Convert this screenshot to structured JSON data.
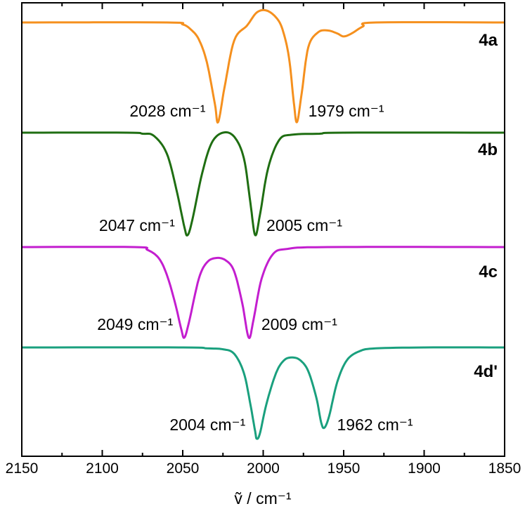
{
  "chart_data": {
    "type": "line",
    "xlabel": "ṽ / cm⁻¹",
    "xlim": [
      2150,
      1850
    ],
    "x_reversed": true,
    "x_ticks": [
      {
        "value": 2150,
        "label": "2150"
      },
      {
        "value": 2100,
        "label": "2100"
      },
      {
        "value": 2050,
        "label": "2050"
      },
      {
        "value": 2000,
        "label": "2000"
      },
      {
        "value": 1950,
        "label": "1950"
      },
      {
        "value": 1900,
        "label": "1900"
      },
      {
        "value": 1850,
        "label": "1850"
      }
    ],
    "minor_tick_step": 25,
    "y_axis_shown": false,
    "grid": false,
    "legend": "none",
    "stacked_offset": true,
    "series": [
      {
        "name": "4a",
        "color": "#f5901e",
        "relative_transmittance": [
          [
            2150,
            1.0
          ],
          [
            2060,
            1.0
          ],
          [
            2050,
            0.98
          ],
          [
            2045,
            0.93
          ],
          [
            2040,
            0.83
          ],
          [
            2035,
            0.6
          ],
          [
            2030,
            0.18
          ],
          [
            2028,
            0.0
          ],
          [
            2024,
            0.35
          ],
          [
            2018,
            0.82
          ],
          [
            2010,
            0.97
          ],
          [
            2004,
            1.1
          ],
          [
            1998,
            1.12
          ],
          [
            1992,
            1.05
          ],
          [
            1988,
            0.93
          ],
          [
            1984,
            0.65
          ],
          [
            1981,
            0.2
          ],
          [
            1979,
            0.0
          ],
          [
            1976,
            0.3
          ],
          [
            1972,
            0.75
          ],
          [
            1966,
            0.9
          ],
          [
            1960,
            0.92
          ],
          [
            1954,
            0.89
          ],
          [
            1950,
            0.86
          ],
          [
            1945,
            0.89
          ],
          [
            1938,
            0.96
          ],
          [
            1930,
            1.0
          ],
          [
            1850,
            1.0
          ]
        ],
        "peaks": [
          {
            "x": 2028,
            "label": "2028 cm⁻¹"
          },
          {
            "x": 1979,
            "label": "1979 cm⁻¹"
          }
        ]
      },
      {
        "name": "4b",
        "color": "#1f6e12",
        "relative_transmittance": [
          [
            2150,
            1.0
          ],
          [
            2085,
            1.0
          ],
          [
            2075,
            0.99
          ],
          [
            2068,
            0.97
          ],
          [
            2060,
            0.8
          ],
          [
            2054,
            0.45
          ],
          [
            2049,
            0.08
          ],
          [
            2047,
            0.0
          ],
          [
            2044,
            0.15
          ],
          [
            2038,
            0.6
          ],
          [
            2032,
            0.9
          ],
          [
            2025,
            1.0
          ],
          [
            2018,
            0.96
          ],
          [
            2012,
            0.75
          ],
          [
            2008,
            0.32
          ],
          [
            2005,
            0.0
          ],
          [
            2002,
            0.2
          ],
          [
            1997,
            0.65
          ],
          [
            1990,
            0.93
          ],
          [
            1982,
            0.98
          ],
          [
            1965,
            0.99
          ],
          [
            1950,
            1.0
          ],
          [
            1850,
            1.0
          ]
        ],
        "peaks": [
          {
            "x": 2047,
            "label": "2047 cm⁻¹"
          },
          {
            "x": 2005,
            "label": "2005 cm⁻¹"
          }
        ]
      },
      {
        "name": "4c",
        "color": "#c31ecf",
        "relative_transmittance": [
          [
            2150,
            1.0
          ],
          [
            2080,
            1.0
          ],
          [
            2072,
            0.97
          ],
          [
            2065,
            0.88
          ],
          [
            2060,
            0.7
          ],
          [
            2055,
            0.4
          ],
          [
            2051,
            0.1
          ],
          [
            2049,
            0.0
          ],
          [
            2046,
            0.18
          ],
          [
            2040,
            0.65
          ],
          [
            2035,
            0.83
          ],
          [
            2029,
            0.88
          ],
          [
            2023,
            0.85
          ],
          [
            2018,
            0.73
          ],
          [
            2013,
            0.38
          ],
          [
            2009,
            0.0
          ],
          [
            2006,
            0.2
          ],
          [
            2001,
            0.65
          ],
          [
            1994,
            0.92
          ],
          [
            1985,
            0.98
          ],
          [
            1960,
            1.0
          ],
          [
            1850,
            1.0
          ]
        ],
        "peaks": [
          {
            "x": 2049,
            "label": "2049 cm⁻¹"
          },
          {
            "x": 2009,
            "label": "2009 cm⁻¹"
          }
        ]
      },
      {
        "name": "4d'",
        "color": "#1aa07e",
        "relative_transmittance": [
          [
            2150,
            1.0
          ],
          [
            2050,
            1.0
          ],
          [
            2035,
            0.99
          ],
          [
            2025,
            0.98
          ],
          [
            2018,
            0.93
          ],
          [
            2012,
            0.72
          ],
          [
            2008,
            0.38
          ],
          [
            2005,
            0.08
          ],
          [
            2004,
            0.0
          ],
          [
            2002,
            0.06
          ],
          [
            1998,
            0.38
          ],
          [
            1992,
            0.72
          ],
          [
            1987,
            0.86
          ],
          [
            1982,
            0.89
          ],
          [
            1977,
            0.86
          ],
          [
            1972,
            0.74
          ],
          [
            1967,
            0.45
          ],
          [
            1964,
            0.18
          ],
          [
            1962,
            0.12
          ],
          [
            1959,
            0.25
          ],
          [
            1954,
            0.62
          ],
          [
            1948,
            0.86
          ],
          [
            1940,
            0.96
          ],
          [
            1930,
            0.99
          ],
          [
            1900,
            1.0
          ],
          [
            1850,
            1.0
          ]
        ],
        "peaks": [
          {
            "x": 2004,
            "label": "2004 cm⁻¹"
          },
          {
            "x": 1962,
            "label": "1962 cm⁻¹"
          }
        ]
      }
    ]
  }
}
